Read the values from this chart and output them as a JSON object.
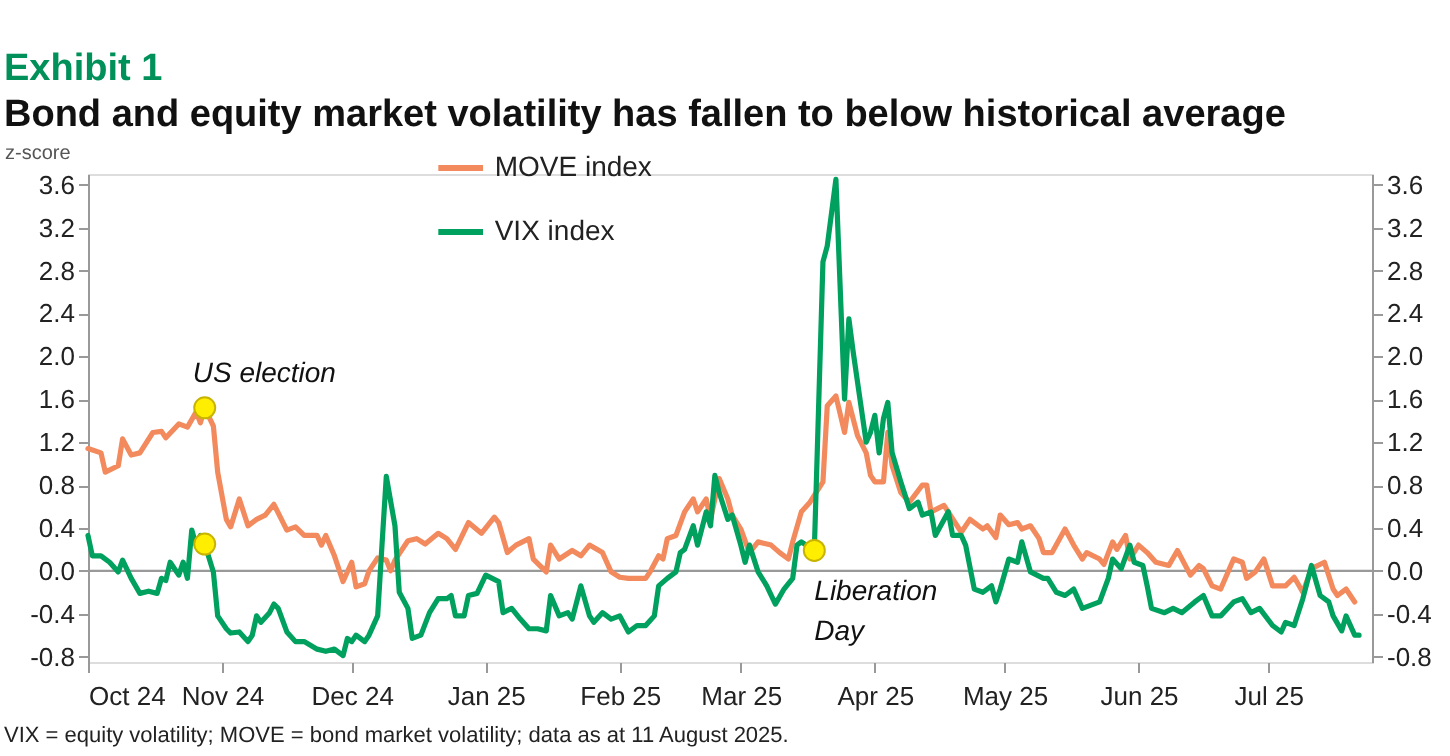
{
  "chart_data": {
    "type": "line",
    "title": "Exhibit 1",
    "subtitle": "Bond and equity market volatility has fallen to below historical average",
    "ylabel": "z-score",
    "xlim": [
      "2024-10-01",
      "2025-07-25"
    ],
    "xticks": [
      {
        "value": "2024-10-01",
        "label": "Oct 24"
      },
      {
        "value": "2024-11-01",
        "label": "Nov 24"
      },
      {
        "value": "2024-12-01",
        "label": "Dec 24"
      },
      {
        "value": "2025-01-01",
        "label": "Jan 25"
      },
      {
        "value": "2025-02-01",
        "label": "Feb 25"
      },
      {
        "value": "2025-03-01",
        "label": "Mar 25"
      },
      {
        "value": "2025-04-01",
        "label": "Apr 25"
      },
      {
        "value": "2025-05-01",
        "label": "May 25"
      },
      {
        "value": "2025-06-01",
        "label": "Jun 25"
      },
      {
        "value": "2025-07-01",
        "label": "Jul 25"
      }
    ],
    "ylim": [
      -0.85,
      3.7
    ],
    "yticks": [
      -0.8,
      -0.4,
      {
        "value": 0,
        "label": "0.0"
      },
      0.4,
      0.8,
      1.2,
      1.6,
      {
        "value": 2,
        "label": "2.0"
      },
      2.4,
      2.8,
      3.2,
      3.6
    ],
    "y2lim": [
      -0.85,
      3.7
    ],
    "y2ticks": [
      -0.8,
      -0.4,
      {
        "value": 0,
        "label": "0.0"
      },
      0.4,
      0.8,
      1.2,
      1.6,
      {
        "value": 2,
        "label": "2.0"
      },
      2.4,
      2.8,
      3.2,
      3.6
    ],
    "grid": false,
    "legend": "top",
    "marker": "none",
    "line_style": "solid",
    "series": [
      {
        "name": "MOVE index",
        "color": "#f28a5e",
        "x": [
          "2024-10-01",
          "2024-10-04",
          "2024-10-05",
          "2024-10-08",
          "2024-10-09",
          "2024-10-11",
          "2024-10-13",
          "2024-10-16",
          "2024-10-18",
          "2024-10-19",
          "2024-10-22",
          "2024-10-24",
          "2024-10-26",
          "2024-10-27",
          "2024-10-28",
          "2024-10-30",
          "2024-10-31",
          "2024-11-02",
          "2024-11-03",
          "2024-11-05",
          "2024-11-07",
          "2024-11-09",
          "2024-11-11",
          "2024-11-13",
          "2024-11-16",
          "2024-11-18",
          "2024-11-20",
          "2024-11-23",
          "2024-11-24",
          "2024-11-25",
          "2024-11-27",
          "2024-11-29",
          "2024-12-01",
          "2024-12-02",
          "2024-12-04",
          "2024-12-05",
          "2024-12-07",
          "2024-12-09",
          "2024-12-10",
          "2024-12-11",
          "2024-12-14",
          "2024-12-16",
          "2024-12-18",
          "2024-12-21",
          "2024-12-23",
          "2024-12-25",
          "2024-12-28",
          "2024-12-31",
          "2025-01-03",
          "2025-01-04",
          "2025-01-06",
          "2025-01-08",
          "2025-01-11",
          "2025-01-12",
          "2025-01-15",
          "2025-01-16",
          "2025-01-18",
          "2025-01-21",
          "2025-01-23",
          "2025-01-25",
          "2025-01-28",
          "2025-01-30",
          "2025-02-01",
          "2025-02-03",
          "2025-02-07",
          "2025-02-08",
          "2025-02-10",
          "2025-02-11",
          "2025-02-12",
          "2025-02-14",
          "2025-02-16",
          "2025-02-18",
          "2025-02-19",
          "2025-02-21",
          "2025-02-22",
          "2025-02-24",
          "2025-02-26",
          "2025-02-27",
          "2025-03-01",
          "2025-03-03",
          "2025-03-05",
          "2025-03-08",
          "2025-03-10",
          "2025-03-12",
          "2025-03-13",
          "2025-03-15",
          "2025-03-17",
          "2025-03-20",
          "2025-03-21",
          "2025-03-23",
          "2025-03-25",
          "2025-03-26",
          "2025-03-28",
          "2025-03-30",
          "2025-03-31",
          "2025-04-01",
          "2025-04-03",
          "2025-04-04",
          "2025-04-05",
          "2025-04-07",
          "2025-04-09",
          "2025-04-12",
          "2025-04-13",
          "2025-04-14",
          "2025-04-17",
          "2025-04-21",
          "2025-04-23",
          "2025-04-26",
          "2025-04-27",
          "2025-04-29",
          "2025-04-30",
          "2025-05-02",
          "2025-05-04",
          "2025-05-05",
          "2025-05-07",
          "2025-05-09",
          "2025-05-10",
          "2025-05-12",
          "2025-05-15",
          "2025-05-17",
          "2025-05-19",
          "2025-05-20",
          "2025-05-23",
          "2025-05-24",
          "2025-05-26",
          "2025-05-27",
          "2025-05-29",
          "2025-05-30",
          "2025-06-01",
          "2025-06-03",
          "2025-06-05",
          "2025-06-08",
          "2025-06-10",
          "2025-06-13",
          "2025-06-15",
          "2025-06-16",
          "2025-06-18",
          "2025-06-20",
          "2025-06-23",
          "2025-06-25",
          "2025-06-26",
          "2025-06-28",
          "2025-06-30",
          "2025-07-02",
          "2025-07-05",
          "2025-07-07",
          "2025-07-09",
          "2025-07-11",
          "2025-07-14",
          "2025-07-16",
          "2025-07-17",
          "2025-07-19",
          "2025-07-21"
        ],
        "values": [
          1.14,
          1.1,
          0.92,
          0.98,
          1.23,
          1.08,
          1.1,
          1.29,
          1.3,
          1.24,
          1.37,
          1.34,
          1.48,
          1.38,
          1.52,
          1.35,
          0.92,
          0.48,
          0.41,
          0.67,
          0.42,
          0.48,
          0.52,
          0.62,
          0.38,
          0.41,
          0.33,
          0.33,
          0.24,
          0.33,
          0.14,
          -0.1,
          0.08,
          -0.15,
          -0.12,
          0.0,
          0.12,
          0.1,
          0.0,
          0.1,
          0.28,
          0.3,
          0.25,
          0.35,
          0.3,
          0.2,
          0.45,
          0.35,
          0.5,
          0.45,
          0.17,
          0.24,
          0.3,
          0.11,
          -0.01,
          0.24,
          0.11,
          0.19,
          0.14,
          0.24,
          0.17,
          -0.01,
          -0.06,
          -0.07,
          -0.07,
          -0.01,
          0.14,
          0.11,
          0.3,
          0.33,
          0.55,
          0.67,
          0.55,
          0.67,
          0.48,
          0.86,
          0.67,
          0.52,
          0.39,
          0.17,
          0.27,
          0.24,
          0.17,
          0.11,
          0.27,
          0.55,
          0.64,
          0.83,
          1.54,
          1.63,
          1.29,
          1.57,
          1.26,
          1.1,
          0.89,
          0.83,
          0.83,
          1.29,
          0.98,
          0.73,
          0.64,
          0.8,
          0.8,
          0.55,
          0.61,
          0.36,
          0.48,
          0.39,
          0.42,
          0.31,
          0.52,
          0.43,
          0.45,
          0.39,
          0.42,
          0.3,
          0.17,
          0.17,
          0.39,
          0.24,
          0.11,
          0.17,
          0.11,
          0.06,
          0.27,
          0.2,
          0.33,
          0.11,
          0.24,
          0.17,
          0.08,
          0.05,
          0.19,
          -0.04,
          0.05,
          0.02,
          -0.14,
          -0.17,
          0.11,
          0.08,
          -0.07,
          -0.01,
          0.11,
          -0.14,
          -0.14,
          -0.06,
          -0.2,
          0.02,
          0.08,
          -0.17,
          -0.23,
          -0.17,
          -0.29
        ]
      },
      {
        "name": "VIX index",
        "color": "#00a05e",
        "x": [
          "2024-10-01",
          "2024-10-02",
          "2024-10-04",
          "2024-10-06",
          "2024-10-08",
          "2024-10-09",
          "2024-10-11",
          "2024-10-13",
          "2024-10-15",
          "2024-10-17",
          "2024-10-18",
          "2024-10-19",
          "2024-10-20",
          "2024-10-22",
          "2024-10-23",
          "2024-10-24",
          "2024-10-25",
          "2024-10-26",
          "2024-10-27",
          "2024-10-28",
          "2024-10-30",
          "2024-10-31",
          "2024-11-02",
          "2024-11-03",
          "2024-11-05",
          "2024-11-07",
          "2024-11-08",
          "2024-11-09",
          "2024-11-10",
          "2024-11-12",
          "2024-11-13",
          "2024-11-14",
          "2024-11-16",
          "2024-11-18",
          "2024-11-20",
          "2024-11-23",
          "2024-11-25",
          "2024-11-27",
          "2024-11-29",
          "2024-11-30",
          "2024-12-01",
          "2024-12-02",
          "2024-12-04",
          "2024-12-05",
          "2024-12-07",
          "2024-12-08",
          "2024-12-09",
          "2024-12-11",
          "2024-12-12",
          "2024-12-14",
          "2024-12-15",
          "2024-12-17",
          "2024-12-19",
          "2024-12-21",
          "2024-12-23",
          "2024-12-24",
          "2024-12-25",
          "2024-12-27",
          "2024-12-28",
          "2024-12-30",
          "2025-01-01",
          "2025-01-04",
          "2025-01-05",
          "2025-01-07",
          "2025-01-09",
          "2025-01-11",
          "2025-01-13",
          "2025-01-15",
          "2025-01-16",
          "2025-01-18",
          "2025-01-20",
          "2025-01-21",
          "2025-01-23",
          "2025-01-25",
          "2025-01-26",
          "2025-01-28",
          "2025-01-30",
          "2025-02-01",
          "2025-02-03",
          "2025-02-05",
          "2025-02-07",
          "2025-02-09",
          "2025-02-10",
          "2025-02-12",
          "2025-02-14",
          "2025-02-15",
          "2025-02-16",
          "2025-02-18",
          "2025-02-19",
          "2025-02-21",
          "2025-02-22",
          "2025-02-23",
          "2025-02-24",
          "2025-02-26",
          "2025-02-27",
          "2025-03-01",
          "2025-03-02",
          "2025-03-03",
          "2025-03-05",
          "2025-03-07",
          "2025-03-09",
          "2025-03-11",
          "2025-03-13",
          "2025-03-14",
          "2025-03-15",
          "2025-03-18",
          "2025-03-20",
          "2025-03-21",
          "2025-03-23",
          "2025-03-25",
          "2025-03-26",
          "2025-03-27",
          "2025-03-30",
          "2025-03-31",
          "2025-04-01",
          "2025-04-02",
          "2025-04-03",
          "2025-04-04",
          "2025-04-05",
          "2025-04-07",
          "2025-04-09",
          "2025-04-11",
          "2025-04-12",
          "2025-04-14",
          "2025-04-15",
          "2025-04-18",
          "2025-04-19",
          "2025-04-21",
          "2025-04-22",
          "2025-04-24",
          "2025-04-26",
          "2025-04-28",
          "2025-04-29",
          "2025-04-30",
          "2025-05-02",
          "2025-05-04",
          "2025-05-05",
          "2025-05-07",
          "2025-05-10",
          "2025-05-11",
          "2025-05-13",
          "2025-05-15",
          "2025-05-17",
          "2025-05-19",
          "2025-05-21",
          "2025-05-23",
          "2025-05-25",
          "2025-05-26",
          "2025-05-28",
          "2025-05-30",
          "2025-05-31",
          "2025-06-02",
          "2025-06-03",
          "2025-06-04",
          "2025-06-07",
          "2025-06-09",
          "2025-06-11",
          "2025-06-14",
          "2025-06-16",
          "2025-06-18",
          "2025-06-20",
          "2025-06-23",
          "2025-06-25",
          "2025-06-27",
          "2025-06-29",
          "2025-07-02",
          "2025-07-04",
          "2025-07-05",
          "2025-07-07",
          "2025-07-09",
          "2025-07-11",
          "2025-07-13",
          "2025-07-15",
          "2025-07-16",
          "2025-07-18",
          "2025-07-19",
          "2025-07-21",
          "2025-07-22"
        ],
        "values": [
          0.33,
          0.14,
          0.14,
          0.08,
          -0.01,
          0.1,
          -0.07,
          -0.21,
          -0.19,
          -0.21,
          -0.07,
          -0.09,
          0.08,
          -0.04,
          0.08,
          -0.07,
          0.38,
          0.24,
          0.33,
          0.25,
          -0.01,
          -0.42,
          -0.54,
          -0.58,
          -0.57,
          -0.66,
          -0.6,
          -0.42,
          -0.48,
          -0.39,
          -0.31,
          -0.35,
          -0.57,
          -0.66,
          -0.66,
          -0.73,
          -0.75,
          -0.73,
          -0.79,
          -0.63,
          -0.66,
          -0.6,
          -0.66,
          -0.6,
          -0.42,
          0.24,
          0.88,
          0.42,
          -0.2,
          -0.35,
          -0.63,
          -0.6,
          -0.39,
          -0.26,
          -0.26,
          -0.23,
          -0.42,
          -0.42,
          -0.23,
          -0.21,
          -0.04,
          -0.1,
          -0.39,
          -0.35,
          -0.45,
          -0.54,
          -0.54,
          -0.56,
          -0.23,
          -0.42,
          -0.39,
          -0.45,
          -0.14,
          -0.42,
          -0.48,
          -0.39,
          -0.45,
          -0.42,
          -0.57,
          -0.51,
          -0.51,
          -0.42,
          -0.14,
          -0.07,
          -0.01,
          0.17,
          0.2,
          0.42,
          0.24,
          0.55,
          0.42,
          0.89,
          0.73,
          0.48,
          0.52,
          0.24,
          0.08,
          0.24,
          -0.01,
          -0.14,
          -0.31,
          -0.17,
          -0.07,
          0.24,
          0.27,
          0.19,
          2.88,
          3.03,
          3.65,
          1.6,
          2.35,
          2.04,
          1.2,
          1.29,
          1.45,
          1.1,
          1.42,
          1.57,
          1.1,
          0.83,
          0.58,
          0.64,
          0.52,
          0.55,
          0.33,
          0.55,
          0.33,
          0.33,
          0.24,
          -0.17,
          -0.2,
          -0.14,
          -0.29,
          -0.17,
          0.11,
          0.08,
          0.27,
          -0.01,
          -0.07,
          -0.07,
          -0.2,
          -0.23,
          -0.17,
          -0.35,
          -0.32,
          -0.29,
          -0.07,
          0.11,
          0.02,
          0.24,
          0.08,
          0.05,
          -0.14,
          -0.35,
          -0.39,
          -0.35,
          -0.39,
          -0.29,
          -0.23,
          -0.42,
          -0.42,
          -0.29,
          -0.26,
          -0.39,
          -0.35,
          -0.51,
          -0.57,
          -0.48,
          -0.51,
          -0.26,
          0.05,
          -0.23,
          -0.29,
          -0.42,
          -0.56,
          -0.42,
          -0.6,
          -0.6
        ]
      },
      {
        "type": "scatter",
        "marker": "circle",
        "color": "#ffee00",
        "x": [
          "2024-10-28",
          "2024-10-28",
          "2025-03-18"
        ],
        "values": [
          1.52,
          0.25,
          0.19
        ]
      }
    ],
    "ref_lines": [
      {
        "axis": "y2",
        "value": 0,
        "color": "#999999"
      }
    ],
    "annotations": [
      {
        "text": "US election",
        "x": "2024-10-28",
        "y": 1.52
      },
      {
        "text": "Liberation Day",
        "x": "2025-03-18",
        "y": 0.19
      },
      "VIX = equity volatility; MOVE = bond market volatility; data as at 11 August 2025."
    ]
  }
}
